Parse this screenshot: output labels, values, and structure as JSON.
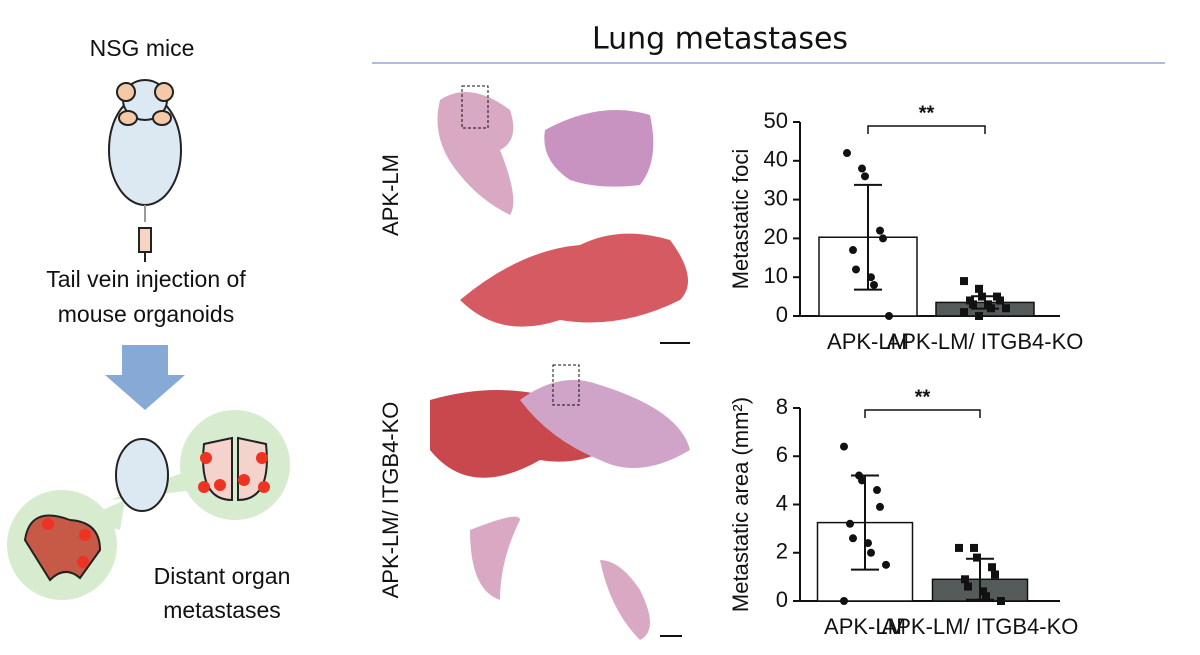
{
  "title": "Lung metastases",
  "schematic": {
    "top_label": "NSG mice",
    "injection": [
      "Tail vein injection of",
      "mouse organoids"
    ],
    "outcome": [
      "Distant organ",
      "metastases"
    ]
  },
  "row_labels": [
    "APK-LM",
    "APK-LM/ ITGB4-KO"
  ],
  "chart_data": [
    {
      "type": "bar",
      "ylabel": "Metastatic foci",
      "categories": [
        "APK-LM",
        "APK-LM/ ITGB4-KO"
      ],
      "values": [
        20.3,
        3.5
      ],
      "errors": [
        13.5,
        1.6
      ],
      "colors": [
        "#ffffff",
        "#555a5a"
      ],
      "points": [
        [
          42,
          38,
          36,
          22,
          20,
          17,
          12,
          10,
          8,
          0
        ],
        [
          9,
          7,
          5,
          5,
          4,
          4,
          3,
          3,
          2,
          2,
          1,
          0
        ]
      ],
      "significance": "**",
      "ylim": [
        0,
        50
      ],
      "yticks": [
        0,
        10,
        20,
        30,
        40,
        50
      ]
    },
    {
      "type": "bar",
      "ylabel": "Metastatic area (mm²)",
      "categories": [
        "APK-LM",
        "APK-LM/ ITGB4-KO"
      ],
      "values": [
        3.25,
        0.9
      ],
      "errors": [
        1.95,
        0.85
      ],
      "colors": [
        "#ffffff",
        "#555a5a"
      ],
      "points": [
        [
          6.4,
          5.2,
          5.0,
          4.6,
          3.9,
          3.2,
          2.6,
          2.4,
          2.0,
          1.5,
          0
        ],
        [
          2.2,
          2.2,
          1.8,
          1.4,
          1.1,
          0.9,
          0.6,
          0.4,
          0.2,
          0.0
        ]
      ],
      "significance": "**",
      "ylim": [
        0,
        8
      ],
      "yticks": [
        0,
        2,
        4,
        6,
        8
      ]
    }
  ]
}
